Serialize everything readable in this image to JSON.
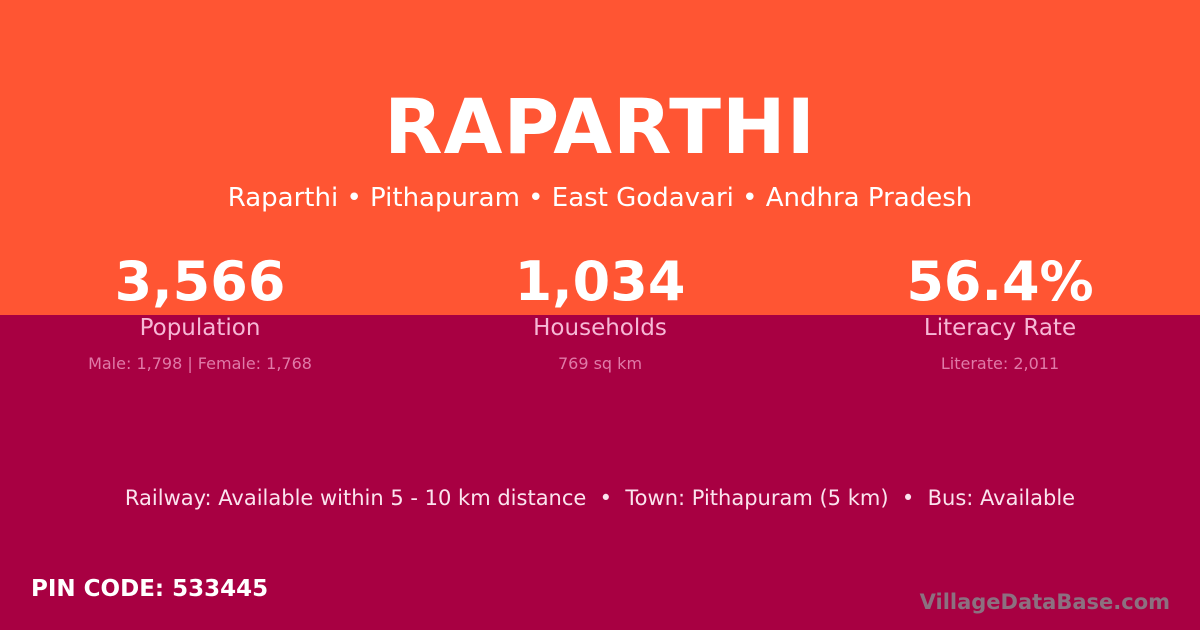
{
  "village": {
    "name": "RAPARTHI",
    "breadcrumb": "Raparthi • Pithapuram • East Godavari • Andhra Pradesh"
  },
  "stats": [
    {
      "value": "3,566",
      "label": "Population",
      "detail": "Male: 1,798 | Female: 1,768"
    },
    {
      "value": "1,034",
      "label": "Households",
      "detail": "769 sq km"
    },
    {
      "value": "56.4%",
      "label": "Literacy Rate",
      "detail": "Literate: 2,011"
    }
  ],
  "connectivity": "Railway: Available within 5 - 10 km distance  •  Town: Pithapuram (5 km)  •  Bus: Available",
  "pin_code": "PIN CODE: 533445",
  "brand": "VillageDataBase.com",
  "colors": {
    "top": "#ff5533",
    "bottom": "#a80042"
  }
}
